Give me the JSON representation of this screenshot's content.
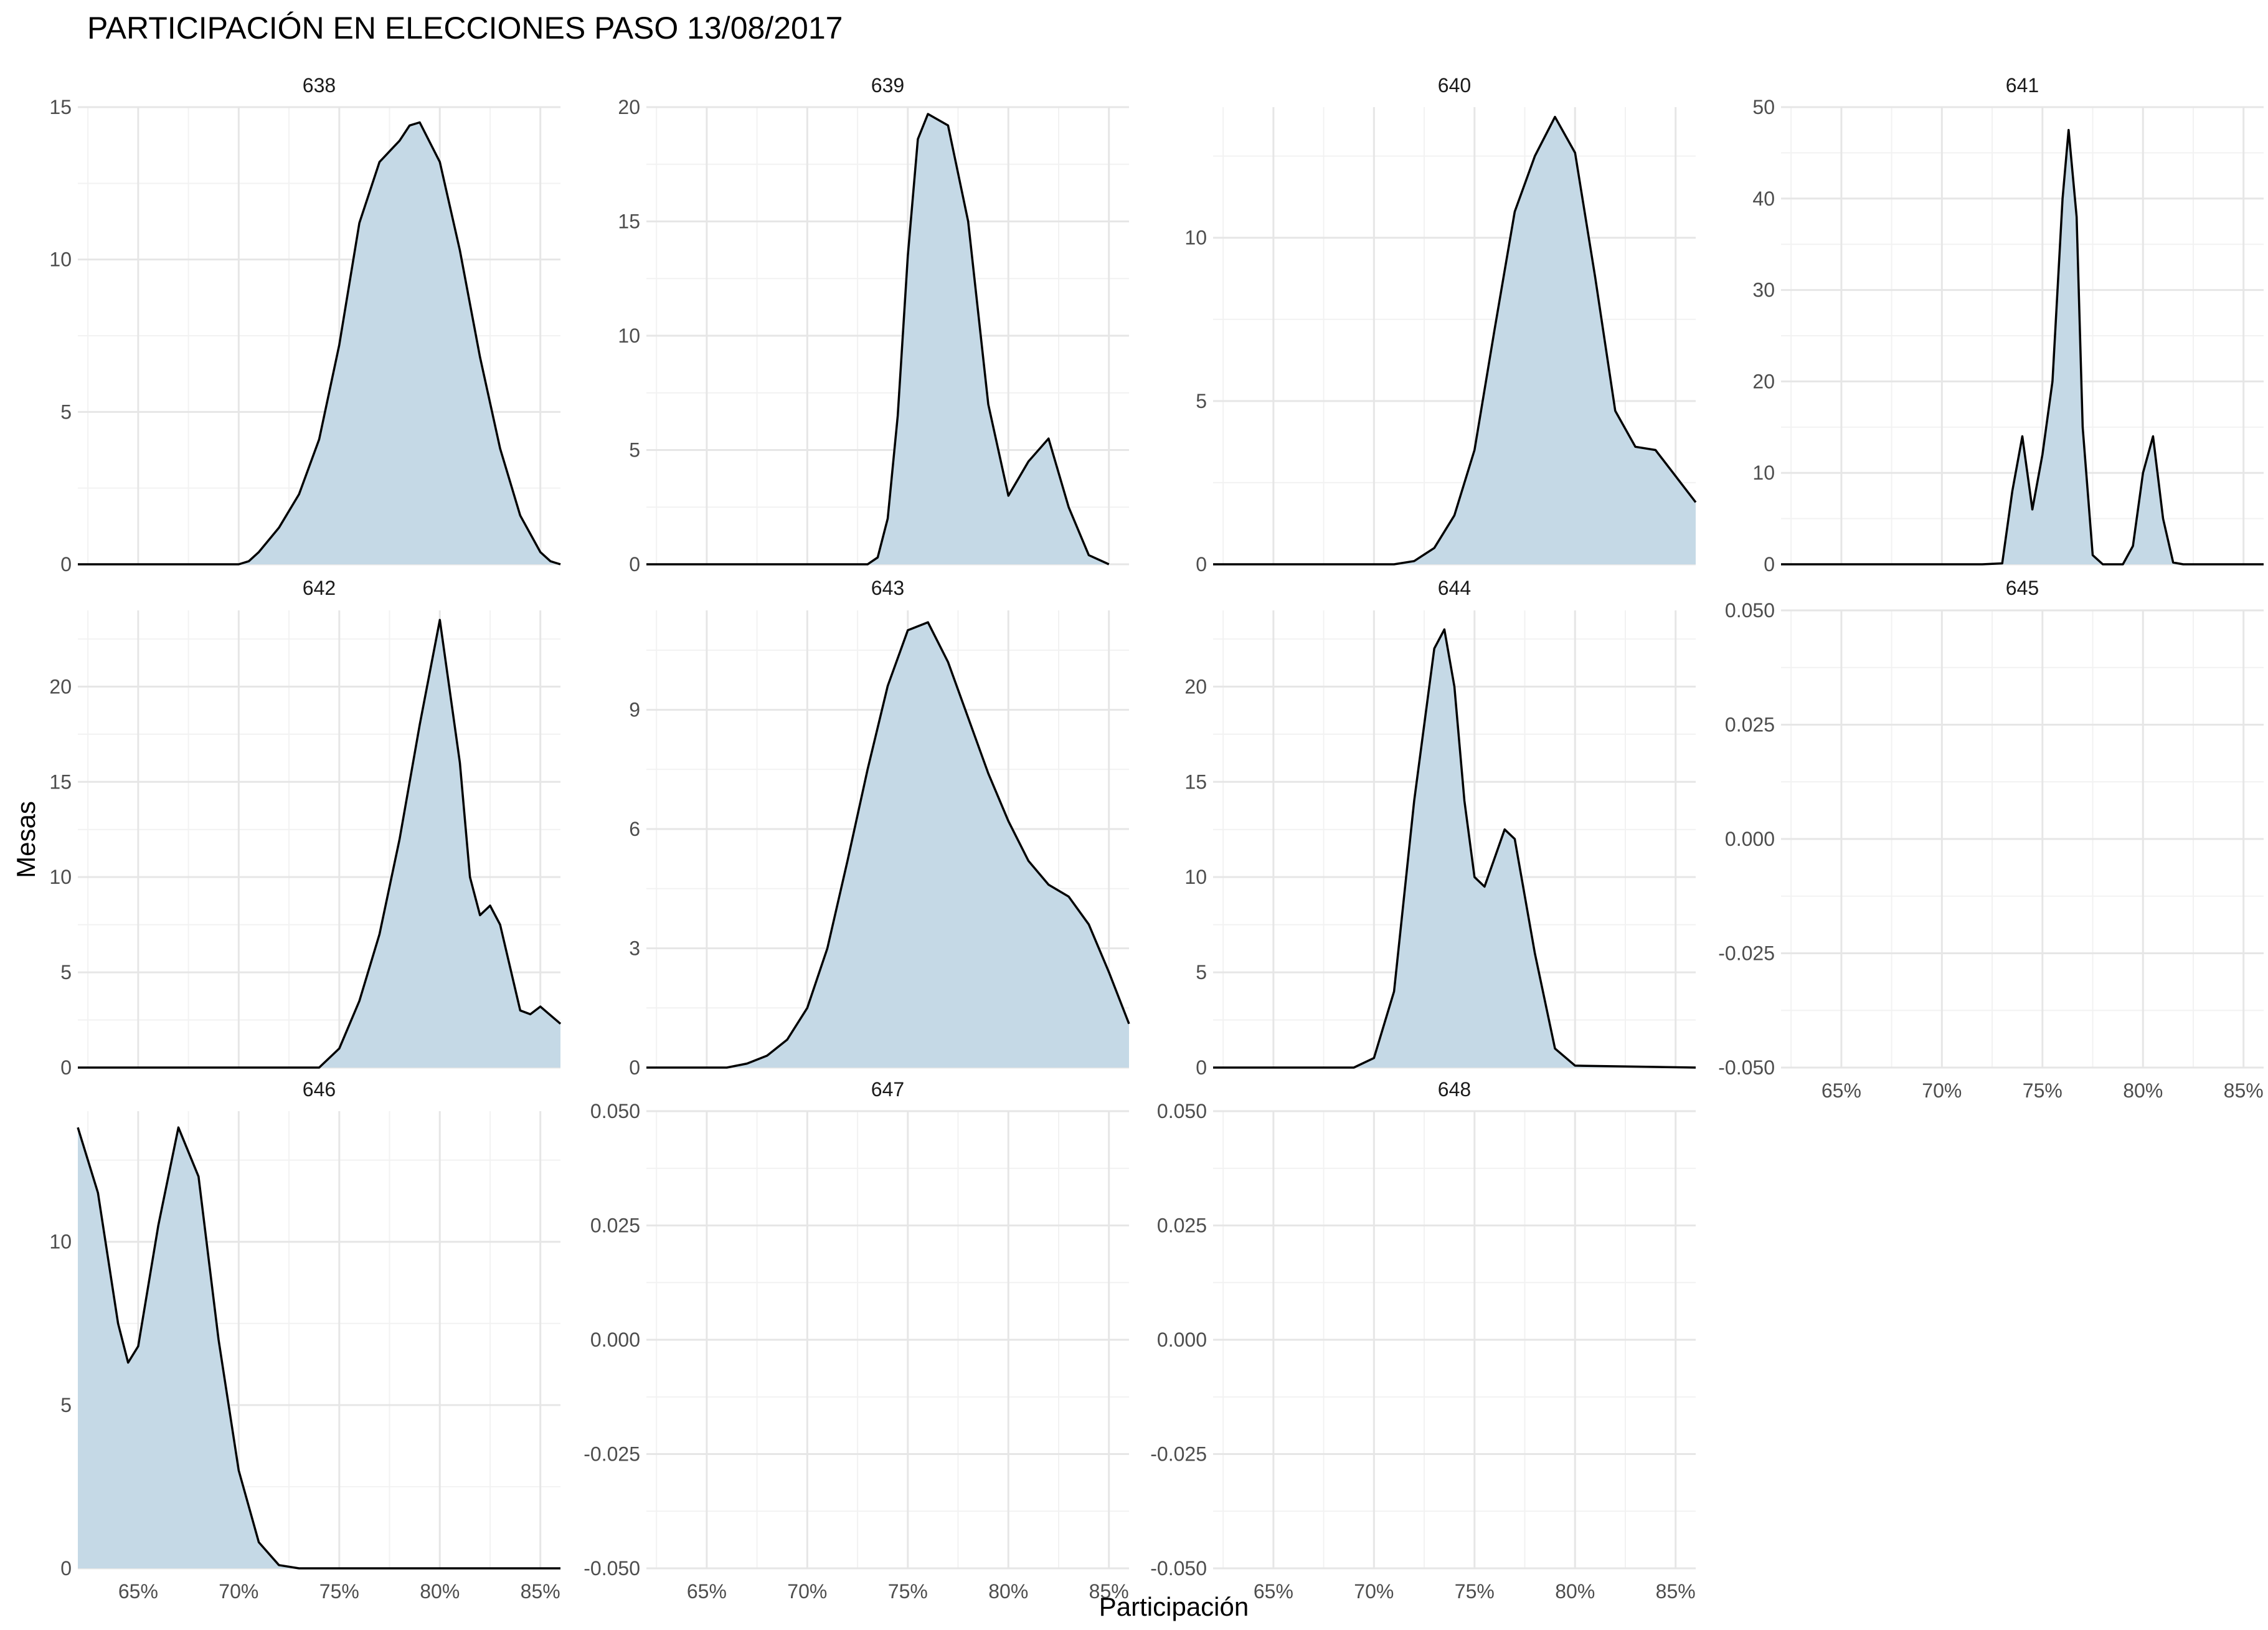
{
  "chart_data": {
    "type": "area",
    "title": "PARTICIPACIÓN EN ELECCIONES PASO 13/08/2017",
    "xlabel": "Participación",
    "ylabel": "Mesas",
    "xlim": [
      62,
      86
    ],
    "x_ticks": [
      65,
      70,
      75,
      80,
      85
    ],
    "x_tick_labels": [
      "65%",
      "70%",
      "75%",
      "80%",
      "85%"
    ],
    "grid": true,
    "fill_color": "#c5d9e6",
    "line_color": "#000000",
    "panels": [
      {
        "label": "638",
        "ylim": [
          0,
          15
        ],
        "y_ticks": [
          0,
          5,
          10,
          15
        ],
        "y_tick_labels": [
          "0",
          "5",
          "10",
          "15"
        ],
        "x": [
          62,
          67,
          70,
          70.5,
          71,
          72,
          73,
          74,
          75,
          76,
          77,
          78,
          78.5,
          79,
          80,
          81,
          82,
          83,
          84,
          85,
          85.5,
          86
        ],
        "y": [
          0,
          0,
          0,
          0.1,
          0.4,
          1.2,
          2.3,
          4.1,
          7.2,
          11.2,
          13.2,
          13.9,
          14.4,
          14.5,
          13.2,
          10.3,
          6.8,
          3.8,
          1.6,
          0.4,
          0.1,
          0
        ]
      },
      {
        "label": "639",
        "ylim": [
          0,
          20
        ],
        "y_ticks": [
          0,
          5,
          10,
          15,
          20
        ],
        "y_tick_labels": [
          "0",
          "5",
          "10",
          "15",
          "20"
        ],
        "x": [
          62,
          70,
          73,
          73.5,
          74,
          74.5,
          75,
          75.5,
          76,
          77,
          78,
          79,
          80,
          81,
          82,
          83,
          84,
          85
        ],
        "y": [
          0,
          0,
          0,
          0.3,
          2.0,
          6.5,
          13.5,
          18.6,
          19.7,
          19.2,
          15.0,
          7.0,
          3.0,
          4.5,
          5.5,
          2.5,
          0.4,
          0
        ]
      },
      {
        "label": "640",
        "ylim": [
          0,
          14
        ],
        "y_ticks": [
          0,
          5,
          10
        ],
        "y_tick_labels": [
          "0",
          "5",
          "10"
        ],
        "x": [
          62,
          71,
          72,
          73,
          74,
          75,
          76,
          77,
          78,
          79,
          80,
          81,
          82,
          83,
          84,
          85,
          86
        ],
        "y": [
          0,
          0,
          0.1,
          0.5,
          1.5,
          3.5,
          7.2,
          10.8,
          12.5,
          13.7,
          12.6,
          8.8,
          4.7,
          3.6,
          3.5,
          2.7,
          1.9
        ]
      },
      {
        "label": "641",
        "ylim": [
          0,
          50
        ],
        "y_ticks": [
          0,
          10,
          20,
          30,
          40,
          50
        ],
        "y_tick_labels": [
          "0",
          "10",
          "20",
          "30",
          "40",
          "50"
        ],
        "x": [
          62,
          72,
          73,
          73.5,
          74,
          74.5,
          75,
          75.5,
          76,
          76.3,
          76.7,
          77,
          77.5,
          78,
          79,
          79.5,
          80,
          80.5,
          81,
          81.5,
          82,
          86
        ],
        "y": [
          0,
          0,
          0.1,
          8,
          14,
          6,
          12,
          20,
          40,
          47.5,
          38,
          15,
          1,
          0,
          0,
          2,
          10,
          14,
          5,
          0.2,
          0,
          0
        ]
      },
      {
        "label": "642",
        "ylim": [
          0,
          24
        ],
        "y_ticks": [
          0,
          5,
          10,
          15,
          20
        ],
        "y_tick_labels": [
          "0",
          "5",
          "10",
          "15",
          "20"
        ],
        "x": [
          62,
          74,
          75,
          76,
          77,
          78,
          79,
          80,
          81,
          81.5,
          82,
          82.5,
          83,
          84,
          84.5,
          85,
          86
        ],
        "y": [
          0,
          0,
          1,
          3.5,
          7,
          12,
          18,
          23.5,
          16,
          10,
          8,
          8.5,
          7.5,
          3,
          2.8,
          3.2,
          2.3
        ]
      },
      {
        "label": "643",
        "ylim": [
          0,
          11.5
        ],
        "y_ticks": [
          0,
          3,
          6,
          9
        ],
        "y_tick_labels": [
          "0",
          "3",
          "6",
          "9"
        ],
        "x": [
          62,
          66,
          67,
          68,
          69,
          70,
          71,
          72,
          73,
          74,
          75,
          76,
          77,
          78,
          79,
          80,
          81,
          82,
          83,
          84,
          85,
          86
        ],
        "y": [
          0,
          0,
          0.1,
          0.3,
          0.7,
          1.5,
          3.0,
          5.2,
          7.5,
          9.6,
          11.0,
          11.2,
          10.2,
          8.8,
          7.4,
          6.2,
          5.2,
          4.6,
          4.3,
          3.6,
          2.4,
          1.1
        ]
      },
      {
        "label": "644",
        "ylim": [
          0,
          24
        ],
        "y_ticks": [
          0,
          5,
          10,
          15,
          20
        ],
        "y_tick_labels": [
          "0",
          "5",
          "10",
          "15",
          "20"
        ],
        "x": [
          62,
          69,
          70,
          71,
          72,
          73,
          73.5,
          74,
          74.5,
          75,
          75.5,
          76,
          76.5,
          77,
          78,
          79,
          80,
          86
        ],
        "y": [
          0,
          0,
          0.5,
          4,
          14,
          22,
          23,
          20,
          14,
          10,
          9.5,
          11,
          12.5,
          12,
          6,
          1,
          0.1,
          0
        ]
      },
      {
        "label": "645",
        "ylim": [
          -0.05,
          0.05
        ],
        "y_ticks": [
          -0.05,
          -0.025,
          0,
          0.025,
          0.05
        ],
        "y_tick_labels": [
          "-0.050",
          "-0.025",
          "0.000",
          "0.025",
          "0.050"
        ],
        "x": [],
        "y": []
      },
      {
        "label": "646",
        "ylim": [
          0,
          14
        ],
        "y_ticks": [
          0,
          5,
          10
        ],
        "y_tick_labels": [
          "0",
          "5",
          "10"
        ],
        "x": [
          62,
          63,
          64,
          64.5,
          65,
          66,
          67,
          68,
          69,
          70,
          71,
          72,
          73,
          86
        ],
        "y": [
          13.5,
          11.5,
          7.5,
          6.3,
          6.8,
          10.5,
          13.5,
          12,
          7,
          3,
          0.8,
          0.1,
          0,
          0
        ]
      },
      {
        "label": "647",
        "ylim": [
          -0.05,
          0.05
        ],
        "y_ticks": [
          -0.05,
          -0.025,
          0,
          0.025,
          0.05
        ],
        "y_tick_labels": [
          "-0.050",
          "-0.025",
          "0.000",
          "0.025",
          "0.050"
        ],
        "x": [],
        "y": []
      },
      {
        "label": "648",
        "ylim": [
          -0.05,
          0.05
        ],
        "y_ticks": [
          -0.05,
          -0.025,
          0,
          0.025,
          0.05
        ],
        "y_tick_labels": [
          "-0.050",
          "-0.025",
          "0.000",
          "0.025",
          "0.050"
        ],
        "x": [],
        "y": []
      }
    ]
  }
}
